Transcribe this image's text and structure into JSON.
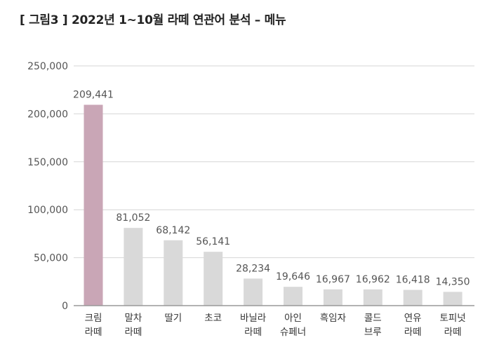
{
  "chart_data": {
    "type": "bar",
    "title": "[ 그림3 ] 2022년 1~10월 라떼 연관어 분석 – 메뉴",
    "xlabel": "",
    "ylabel": "",
    "categories": [
      [
        "크림",
        "라떼"
      ],
      [
        "말차",
        "라떼"
      ],
      [
        "딸기"
      ],
      [
        "초코"
      ],
      [
        "바닐라",
        "라떼"
      ],
      [
        "아인",
        "슈페너"
      ],
      [
        "흑임자"
      ],
      [
        "콜드",
        "브루"
      ],
      [
        "연유",
        "라떼"
      ],
      [
        "토피넛",
        "라떼"
      ]
    ],
    "values": [
      209441,
      81052,
      68142,
      56141,
      28234,
      19646,
      16967,
      16962,
      16418,
      14350
    ],
    "value_labels": [
      "209,441",
      "81,052",
      "68,142",
      "56,141",
      "28,234",
      "19,646",
      "16,967",
      "16,962",
      "16,418",
      "14,350"
    ],
    "ylim": [
      0,
      250000
    ],
    "yticks": [
      0,
      50000,
      100000,
      150000,
      200000,
      250000
    ],
    "ytick_labels": [
      "0",
      "50,000",
      "100,000",
      "150,000",
      "200,000",
      "250,000"
    ],
    "grid": true,
    "colors": {
      "highlight": "#c9a6b6",
      "bar": "#d9d9d9",
      "grid": "#d6d6d6",
      "axis": "#999999"
    }
  }
}
